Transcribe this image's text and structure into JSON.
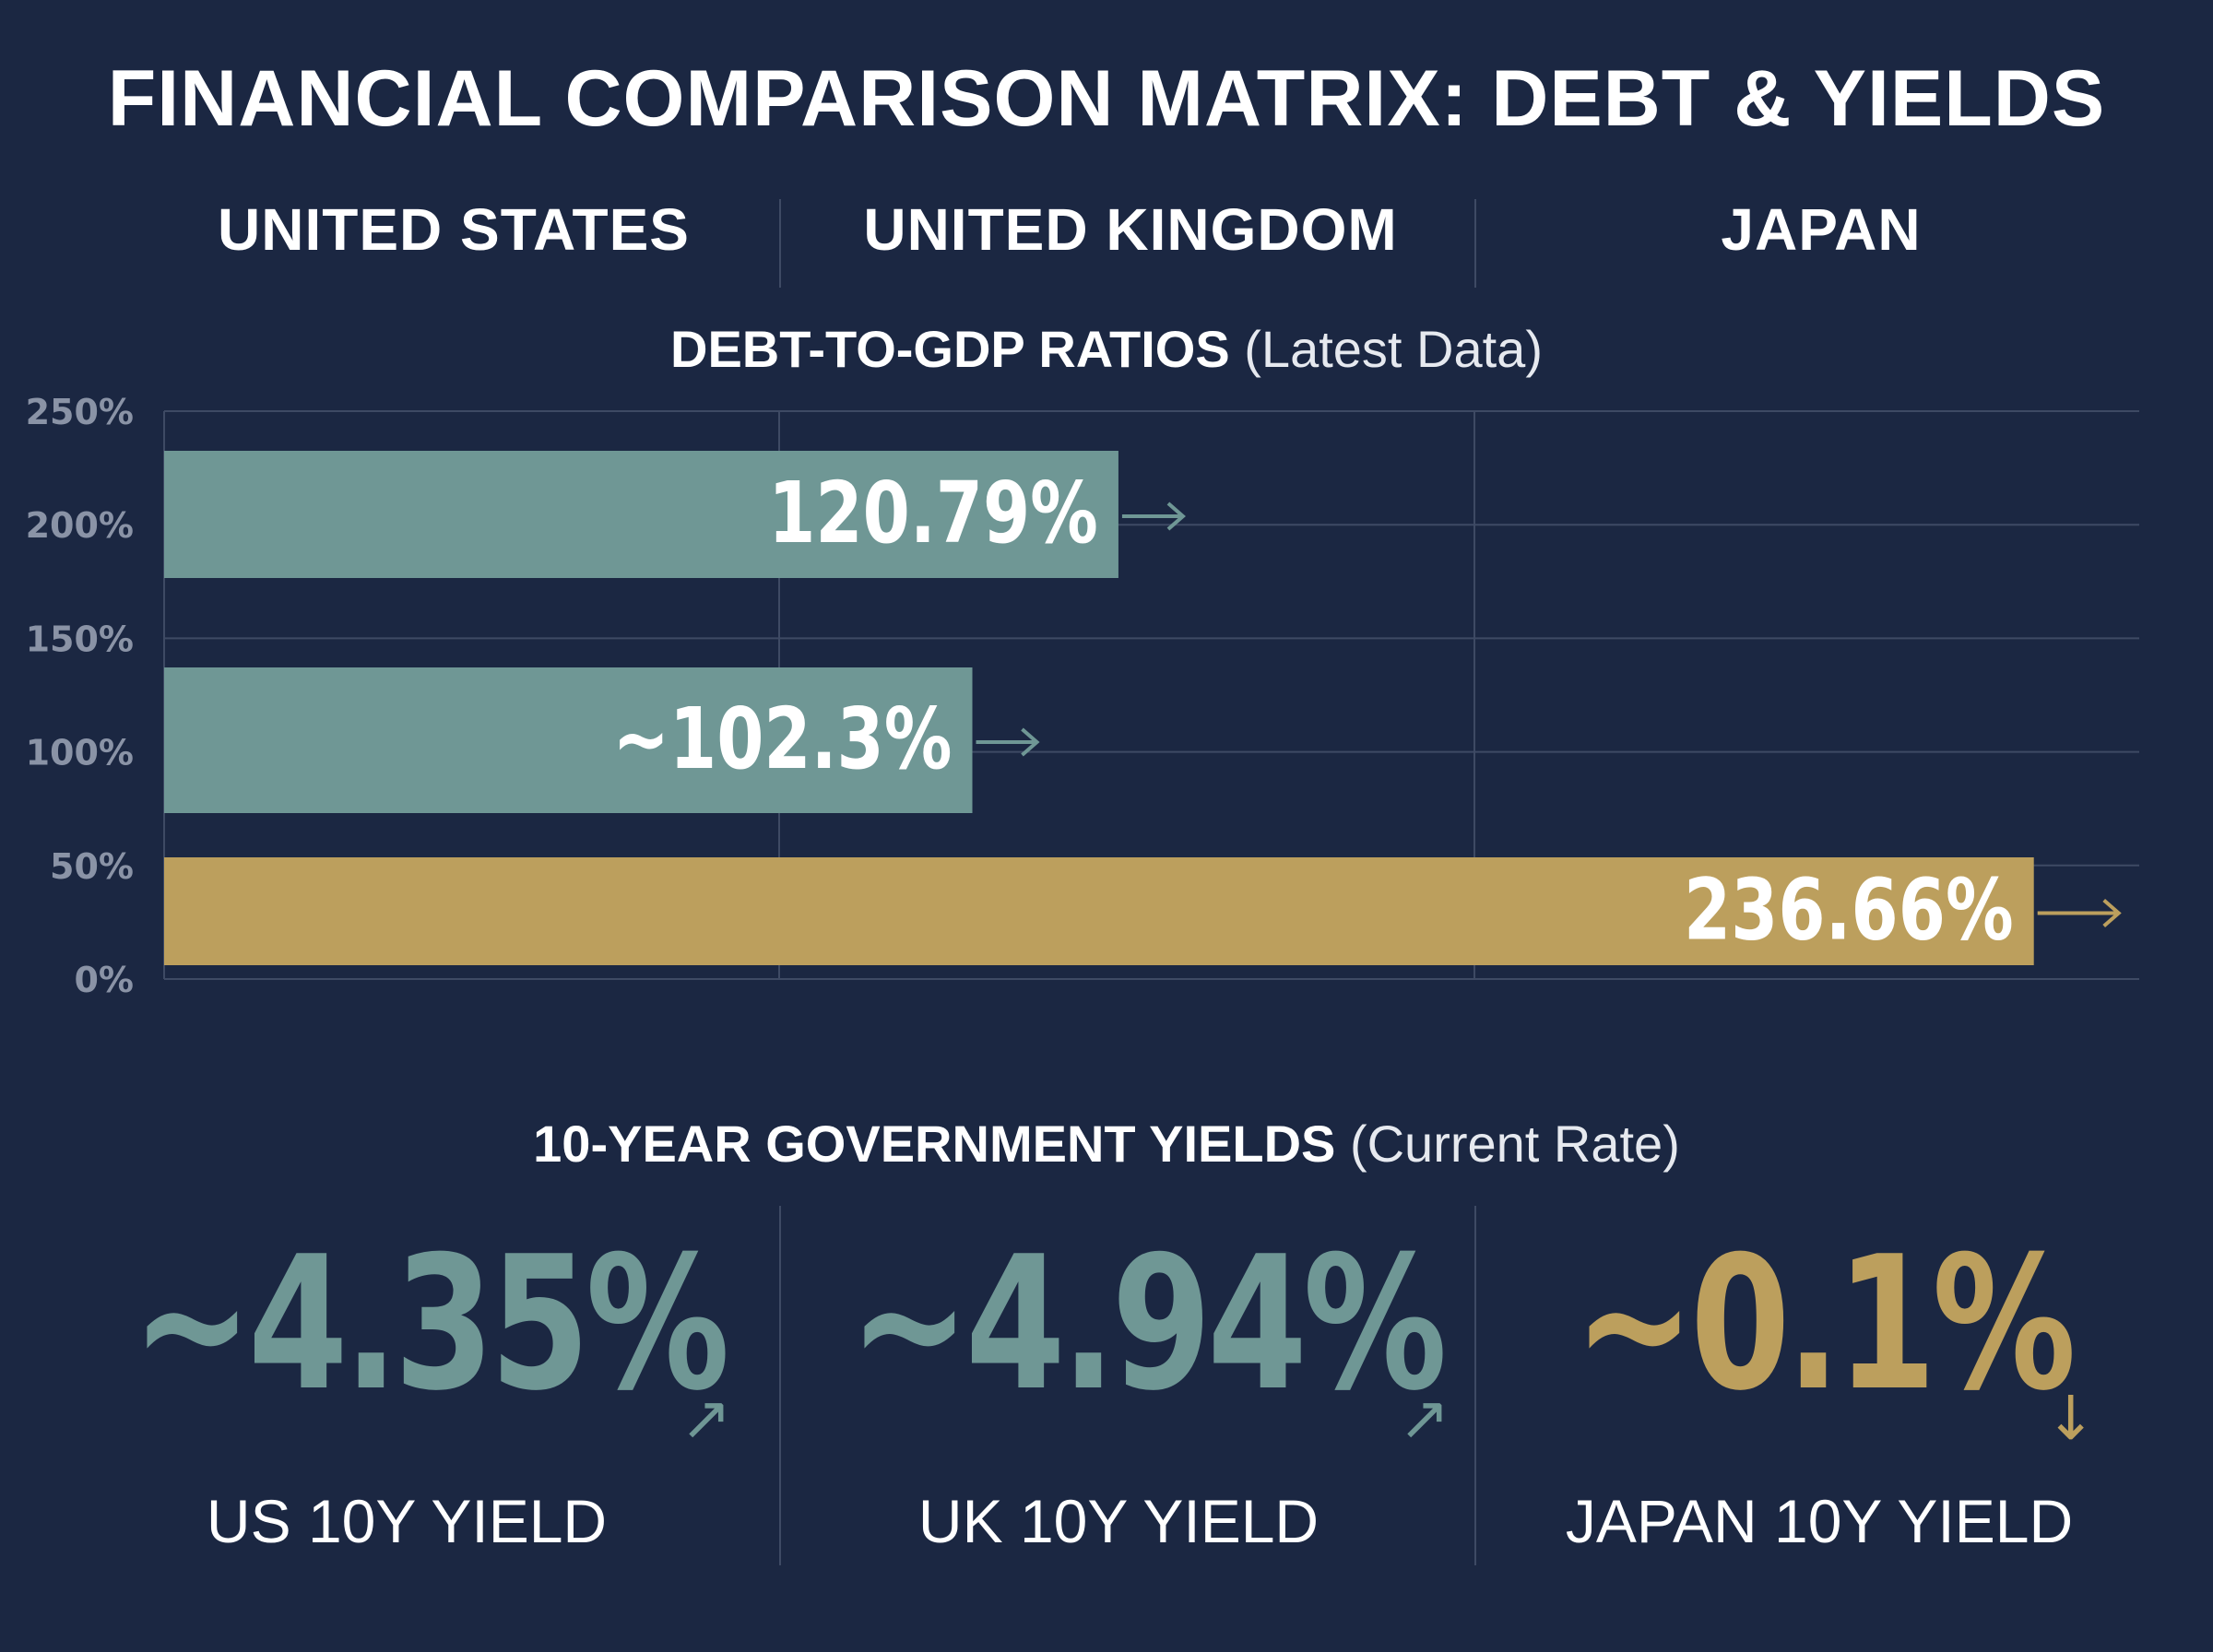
{
  "title": "FINANCIAL COMPARISON MATRIX: DEBT & YIELDS",
  "countries": [
    "UNITED STATES",
    "UNITED KINGDOM",
    "JAPAN"
  ],
  "colors": {
    "background": "#1b2742",
    "teal": "#6f9795",
    "gold": "#bc9f5d",
    "grid": "#3e4a64",
    "axis_text": "#8a93a6"
  },
  "chart_data": {
    "type": "bar",
    "orientation": "horizontal",
    "title_strong": "DEBT-TO-GDP RATIOS",
    "title_light": "(Latest Data)",
    "ylim": [
      0,
      250
    ],
    "y_ticks": [
      "250%",
      "200%",
      "150%",
      "100%",
      "50%",
      "0%"
    ],
    "grid": true,
    "bars": [
      {
        "category": "UNITED STATES",
        "value": 120.79,
        "label": "120.79%",
        "color": "#6f9795",
        "arrow": "right-arrow-icon"
      },
      {
        "category": "UNITED KINGDOM",
        "value": 102.3,
        "label": "~102.3%",
        "color": "#6f9795",
        "arrow": "right-arrow-icon"
      },
      {
        "category": "JAPAN",
        "value": 236.66,
        "label": "236.66%",
        "color": "#bc9f5d",
        "arrow": "right-arrow-icon"
      }
    ]
  },
  "yields": {
    "title_strong": "10-YEAR GOVERNMENT YIELDS",
    "title_light": "(Current Rate)",
    "items": [
      {
        "value": "~4.35%",
        "label": "US 10Y YIELD",
        "color": "#6f9795",
        "arrow": "↗",
        "arrow_icon": "up-right-arrow-icon"
      },
      {
        "value": "~4.94%",
        "label": "UK 10Y YIELD",
        "color": "#6f9795",
        "arrow": "↗",
        "arrow_icon": "up-right-arrow-icon"
      },
      {
        "value": "~0.1%",
        "label": "JAPAN 10Y YIELD",
        "color": "#bc9f5d",
        "arrow": "↓",
        "arrow_icon": "down-arrow-icon"
      }
    ]
  }
}
